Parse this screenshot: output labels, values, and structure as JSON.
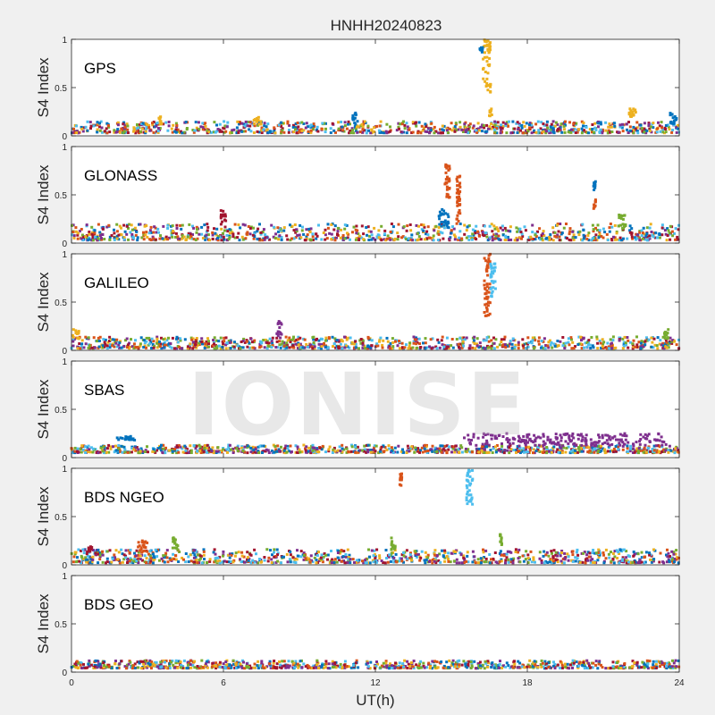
{
  "title": "HNHH20240823",
  "xlabel": "UT(h)",
  "watermark": "IONISE",
  "colors": [
    "#0072BD",
    "#D95319",
    "#EDB120",
    "#7E2F8E",
    "#77AC30",
    "#4DBEEE",
    "#A2142F"
  ],
  "chart_data": {
    "type": "scatter",
    "title": "HNHH20240823",
    "xlabel": "UT(h)",
    "ylabel": "S4 Index",
    "xlim": [
      0,
      24
    ],
    "ylim": [
      0,
      1
    ],
    "xticks": [
      0,
      6,
      12,
      18,
      24
    ],
    "yticks": [
      0,
      0.5,
      1
    ],
    "ytick_labels": [
      "0",
      "0.5",
      "1"
    ],
    "panels": [
      {
        "name": "GPS",
        "ylabel": "S4 Index",
        "baseline": {
          "from": 0,
          "to": 24,
          "y_min": 0.03,
          "y_max": 0.15
        },
        "spikes": [
          {
            "x_range": [
              16.25,
              16.55
            ],
            "y_range": [
              0.45,
              1.0
            ],
            "color": "#EDB120"
          },
          {
            "x_range": [
              16.1,
              16.3
            ],
            "y_range": [
              0.85,
              0.92
            ],
            "color": "#0072BD"
          },
          {
            "x_range": [
              16.5,
              16.6
            ],
            "y_range": [
              0.2,
              0.3
            ],
            "color": "#EDB120"
          },
          {
            "x_range": [
              7.2,
              7.5
            ],
            "y_range": [
              0.12,
              0.22
            ],
            "color": "#EDB120"
          },
          {
            "x_range": [
              11.1,
              11.3
            ],
            "y_range": [
              0.12,
              0.24
            ],
            "color": "#0072BD"
          },
          {
            "x_range": [
              22.0,
              22.3
            ],
            "y_range": [
              0.15,
              0.28
            ],
            "color": "#EDB120"
          },
          {
            "x_range": [
              23.6,
              23.9
            ],
            "y_range": [
              0.12,
              0.25
            ],
            "color": "#0072BD"
          },
          {
            "x_range": [
              3.4,
              3.6
            ],
            "y_range": [
              0.12,
              0.2
            ],
            "color": "#EDB120"
          }
        ]
      },
      {
        "name": "GLONASS",
        "ylabel": "S4 Index",
        "baseline": {
          "from": 0,
          "to": 24,
          "y_min": 0.03,
          "y_max": 0.2
        },
        "spikes": [
          {
            "x_range": [
              14.75,
              14.95
            ],
            "y_range": [
              0.45,
              0.82
            ],
            "color": "#D95319"
          },
          {
            "x_range": [
              15.2,
              15.35
            ],
            "y_range": [
              0.2,
              0.7
            ],
            "color": "#D95319"
          },
          {
            "x_range": [
              20.6,
              20.7
            ],
            "y_range": [
              0.55,
              0.65
            ],
            "color": "#0072BD"
          },
          {
            "x_range": [
              20.6,
              20.7
            ],
            "y_range": [
              0.35,
              0.45
            ],
            "color": "#D95319"
          },
          {
            "x_range": [
              14.5,
              14.9
            ],
            "y_range": [
              0.15,
              0.35
            ],
            "color": "#0072BD"
          },
          {
            "x_range": [
              5.9,
              6.1
            ],
            "y_range": [
              0.22,
              0.35
            ],
            "color": "#A2142F"
          },
          {
            "x_range": [
              21.6,
              21.9
            ],
            "y_range": [
              0.15,
              0.3
            ],
            "color": "#77AC30"
          }
        ]
      },
      {
        "name": "GALILEO",
        "ylabel": "S4 Index",
        "baseline": {
          "from": 0,
          "to": 24,
          "y_min": 0.02,
          "y_max": 0.14
        },
        "spikes": [
          {
            "x_range": [
              16.3,
              16.55
            ],
            "y_range": [
              0.35,
              1.0
            ],
            "color": "#D95319"
          },
          {
            "x_range": [
              16.55,
              16.75
            ],
            "y_range": [
              0.55,
              0.9
            ],
            "color": "#4DBEEE"
          },
          {
            "x_range": [
              8.1,
              8.3
            ],
            "y_range": [
              0.14,
              0.3
            ],
            "color": "#7E2F8E"
          },
          {
            "x_range": [
              23.4,
              23.6
            ],
            "y_range": [
              0.12,
              0.22
            ],
            "color": "#77AC30"
          },
          {
            "x_range": [
              0,
              0.3
            ],
            "y_range": [
              0.12,
              0.22
            ],
            "color": "#EDB120"
          }
        ]
      },
      {
        "name": "SBAS",
        "ylabel": "S4 Index",
        "baseline": {
          "from": 0,
          "to": 24,
          "y_min": 0.05,
          "y_max": 0.13
        },
        "spikes": [
          {
            "x_range": [
              15.5,
              23.5
            ],
            "y_range": [
              0.12,
              0.25
            ],
            "color": "#7E2F8E"
          },
          {
            "x_range": [
              1.8,
              2.5
            ],
            "y_range": [
              0.18,
              0.22
            ],
            "color": "#0072BD"
          }
        ]
      },
      {
        "name": "BDS NGEO",
        "ylabel": "S4 Index",
        "baseline": {
          "from": 0,
          "to": 24,
          "y_min": 0.02,
          "y_max": 0.16
        },
        "spikes": [
          {
            "x_range": [
              12.95,
              13.05
            ],
            "y_range": [
              0.78,
              0.95
            ],
            "color": "#D95319"
          },
          {
            "x_range": [
              15.6,
              15.85
            ],
            "y_range": [
              0.6,
              0.98
            ],
            "color": "#4DBEEE"
          },
          {
            "x_range": [
              4.0,
              4.2
            ],
            "y_range": [
              0.15,
              0.32
            ],
            "color": "#77AC30"
          },
          {
            "x_range": [
              16.9,
              17.0
            ],
            "y_range": [
              0.2,
              0.32
            ],
            "color": "#77AC30"
          },
          {
            "x_range": [
              0.6,
              0.8
            ],
            "y_range": [
              0.1,
              0.2
            ],
            "color": "#A2142F"
          },
          {
            "x_range": [
              2.6,
              3.0
            ],
            "y_range": [
              0.12,
              0.25
            ],
            "color": "#D95319"
          },
          {
            "x_range": [
              12.6,
              12.8
            ],
            "y_range": [
              0.15,
              0.28
            ],
            "color": "#77AC30"
          }
        ]
      },
      {
        "name": "BDS GEO",
        "ylabel": "S4 Index",
        "baseline": {
          "from": 0,
          "to": 24,
          "y_min": 0.04,
          "y_max": 0.12
        },
        "spikes": []
      }
    ]
  }
}
